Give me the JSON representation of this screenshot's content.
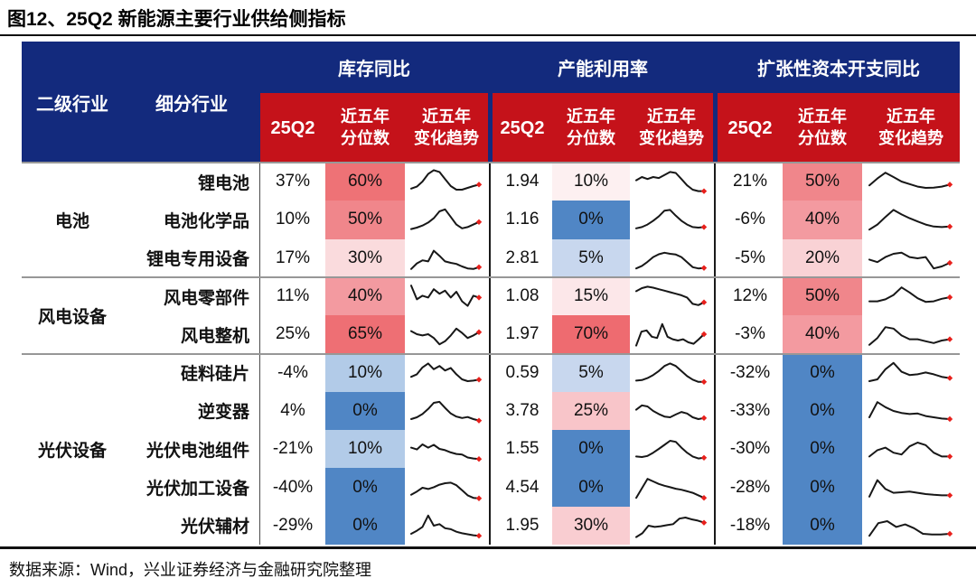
{
  "title": "图12、25Q2 新能源主要行业供给侧指标",
  "source_note": "数据来源：Wind，兴业证券经济与金融研究院整理",
  "header": {
    "industry": "二级行业",
    "segment": "细分行业",
    "q_label": "25Q2",
    "pct_label": "近五年\n分位数",
    "trend_label": "近五年\n变化趋势"
  },
  "colors": {
    "header_navy": "#132a7d",
    "header_red": "#c5121a",
    "spark_line": "#171717",
    "spark_dot": "#e8201c",
    "percentile_red_strong": "#ee6f74",
    "percentile_blue": "#5086c5"
  },
  "chart_data": {
    "type": "table",
    "title": "图12、25Q2 新能源主要行业供给侧指标",
    "column_groups": [
      "库存同比",
      "产能利用率",
      "扩张性资本开支同比"
    ],
    "sub_columns": [
      "25Q2",
      "近五年分位数",
      "近五年变化趋势"
    ],
    "industry_groups": [
      {
        "name": "电池",
        "rows": 3
      },
      {
        "name": "风电设备",
        "rows": 2
      },
      {
        "name": "光伏设备",
        "rows": 5
      }
    ],
    "rows": [
      {
        "industry": "电池",
        "segment": "锂电池",
        "inventory": {
          "value": "37%",
          "percentile": "60%",
          "color": "#ee7276",
          "trend": [
            0.22,
            0.3,
            0.5,
            0.8,
            0.95,
            0.88,
            0.6,
            0.32,
            0.18,
            0.18,
            0.25,
            0.32,
            0.38
          ]
        },
        "capacity": {
          "value": "1.94",
          "percentile": "10%",
          "color": "#fdf0f1",
          "trend": [
            0.55,
            0.68,
            0.6,
            0.68,
            0.64,
            0.76,
            0.88,
            0.84,
            0.6,
            0.35,
            0.18,
            0.12,
            0.12
          ]
        },
        "capex": {
          "value": "21%",
          "percentile": "50%",
          "color": "#f0868b",
          "trend": [
            0.35,
            0.62,
            0.85,
            0.68,
            0.5,
            0.4,
            0.3,
            0.25,
            0.26,
            0.3,
            0.38
          ]
        }
      },
      {
        "industry": "电池",
        "segment": "电池化学品",
        "inventory": {
          "value": "10%",
          "percentile": "50%",
          "color": "#f0868b",
          "trend": [
            0.12,
            0.18,
            0.26,
            0.38,
            0.55,
            0.82,
            0.9,
            0.6,
            0.3,
            0.15,
            0.2,
            0.3,
            0.4
          ]
        },
        "capacity": {
          "value": "1.16",
          "percentile": "0%",
          "color": "#5086c5",
          "trend": [
            0.15,
            0.2,
            0.3,
            0.45,
            0.62,
            0.85,
            0.88,
            0.65,
            0.45,
            0.3,
            0.2,
            0.18,
            0.2
          ]
        },
        "capex": {
          "value": "-6%",
          "percentile": "40%",
          "color": "#f39aa0",
          "trend": [
            0.1,
            0.3,
            0.6,
            0.88,
            0.7,
            0.55,
            0.42,
            0.3,
            0.22,
            0.2,
            0.22
          ]
        }
      },
      {
        "industry": "电池",
        "segment": "锂电专用设备",
        "inventory": {
          "value": "17%",
          "percentile": "30%",
          "color": "#fadbdd",
          "trend": [
            0.08,
            0.3,
            0.42,
            0.38,
            0.8,
            0.6,
            0.38,
            0.32,
            0.28,
            0.18,
            0.1,
            0.08,
            0.15
          ]
        },
        "capacity": {
          "value": "2.81",
          "percentile": "5%",
          "color": "#c8d7ee",
          "trend": [
            0.1,
            0.2,
            0.36,
            0.55,
            0.66,
            0.72,
            0.68,
            0.65,
            0.55,
            0.35,
            0.15,
            0.1,
            0.12
          ]
        },
        "capex": {
          "value": "-5%",
          "percentile": "20%",
          "color": "#f9d2d5",
          "trend": [
            0.45,
            0.35,
            0.55,
            0.68,
            0.72,
            0.55,
            0.5,
            0.55,
            0.1,
            0.18,
            0.32
          ]
        }
      },
      {
        "industry": "风电设备",
        "segment": "风电零部件",
        "inventory": {
          "value": "11%",
          "percentile": "40%",
          "color": "#f39aa0",
          "trend": [
            0.92,
            0.38,
            0.52,
            0.45,
            0.78,
            0.6,
            0.72,
            0.45,
            0.68,
            0.3,
            0.12,
            0.52,
            0.45
          ]
        },
        "capacity": {
          "value": "1.08",
          "percentile": "15%",
          "color": "#fce7e9",
          "trend": [
            0.7,
            0.82,
            0.88,
            0.84,
            0.78,
            0.72,
            0.66,
            0.6,
            0.54,
            0.45,
            0.2,
            0.15,
            0.26
          ]
        },
        "capex": {
          "value": "12%",
          "percentile": "50%",
          "color": "#f0868b",
          "trend": [
            0.3,
            0.3,
            0.38,
            0.55,
            0.85,
            0.65,
            0.42,
            0.28,
            0.3,
            0.4,
            0.46
          ]
        }
      },
      {
        "industry": "风电设备",
        "segment": "风电整机",
        "inventory": {
          "value": "25%",
          "percentile": "65%",
          "color": "#ee6f74",
          "trend": [
            0.62,
            0.5,
            0.45,
            0.5,
            0.35,
            0.1,
            0.22,
            0.45,
            0.72,
            0.55,
            0.35,
            0.45,
            0.58
          ]
        },
        "capacity": {
          "value": "1.97",
          "percentile": "70%",
          "color": "#ee6b70",
          "trend": [
            0.05,
            0.6,
            0.65,
            0.4,
            0.35,
            0.9,
            0.4,
            0.3,
            0.25,
            0.3,
            0.18,
            0.12,
            0.3,
            0.5
          ]
        },
        "capex": {
          "value": "-3%",
          "percentile": "40%",
          "color": "#f39aa0",
          "trend": [
            0.08,
            0.35,
            0.78,
            0.72,
            0.45,
            0.3,
            0.3,
            0.22,
            0.15,
            0.25,
            0.3
          ]
        }
      },
      {
        "industry": "光伏设备",
        "segment": "硅料硅片",
        "inventory": {
          "value": "-4%",
          "percentile": "10%",
          "color": "#b2cbe8",
          "trend": [
            0.35,
            0.45,
            0.72,
            0.88,
            0.65,
            0.78,
            0.6,
            0.7,
            0.45,
            0.25,
            0.18,
            0.2,
            0.24
          ]
        },
        "capacity": {
          "value": "0.59",
          "percentile": "5%",
          "color": "#c8d7ee",
          "trend": [
            0.2,
            0.22,
            0.3,
            0.42,
            0.58,
            0.78,
            0.88,
            0.78,
            0.58,
            0.38,
            0.24,
            0.15,
            0.15
          ]
        },
        "capex": {
          "value": "-32%",
          "percentile": "0%",
          "color": "#5086c5",
          "trend": [
            0.18,
            0.25,
            0.65,
            0.9,
            0.55,
            0.42,
            0.45,
            0.52,
            0.45,
            0.35,
            0.3
          ]
        }
      },
      {
        "industry": "光伏设备",
        "segment": "逆变器",
        "inventory": {
          "value": "4%",
          "percentile": "0%",
          "color": "#5086c5",
          "trend": [
            0.18,
            0.25,
            0.38,
            0.58,
            0.82,
            0.86,
            0.62,
            0.4,
            0.28,
            0.22,
            0.26,
            0.18,
            0.12
          ]
        },
        "capacity": {
          "value": "3.78",
          "percentile": "25%",
          "color": "#f8c5c9",
          "trend": [
            0.55,
            0.72,
            0.68,
            0.5,
            0.38,
            0.28,
            0.25,
            0.36,
            0.46,
            0.4,
            0.25,
            0.18,
            0.22
          ]
        },
        "capex": {
          "value": "-33%",
          "percentile": "0%",
          "color": "#5086c5",
          "trend": [
            0.25,
            0.85,
            0.65,
            0.5,
            0.42,
            0.38,
            0.4,
            0.3,
            0.25,
            0.2,
            0.18
          ]
        }
      },
      {
        "industry": "光伏设备",
        "segment": "光伏电池组件",
        "inventory": {
          "value": "-21%",
          "percentile": "10%",
          "color": "#b2cbe8",
          "trend": [
            0.55,
            0.48,
            0.68,
            0.55,
            0.66,
            0.5,
            0.45,
            0.36,
            0.3,
            0.28,
            0.16,
            0.12,
            0.1
          ]
        },
        "capacity": {
          "value": "1.55",
          "percentile": "0%",
          "color": "#5086c5",
          "trend": [
            0.2,
            0.18,
            0.22,
            0.35,
            0.5,
            0.66,
            0.82,
            0.78,
            0.55,
            0.35,
            0.2,
            0.12,
            0.15
          ]
        },
        "capex": {
          "value": "-30%",
          "percentile": "0%",
          "color": "#5086c5",
          "trend": [
            0.2,
            0.45,
            0.55,
            0.35,
            0.28,
            0.6,
            0.75,
            0.65,
            0.35,
            0.2,
            0.2
          ]
        }
      },
      {
        "industry": "光伏设备",
        "segment": "光伏加工设备",
        "inventory": {
          "value": "-40%",
          "percentile": "0%",
          "color": "#5086c5",
          "trend": [
            0.22,
            0.35,
            0.5,
            0.45,
            0.52,
            0.62,
            0.68,
            0.7,
            0.6,
            0.4,
            0.2,
            0.1,
            0.08
          ]
        },
        "capacity": {
          "value": "4.54",
          "percentile": "0%",
          "color": "#5086c5",
          "trend": [
            0.1,
            0.48,
            0.85,
            0.75,
            0.65,
            0.58,
            0.52,
            0.46,
            0.42,
            0.36,
            0.3,
            0.2,
            0.1
          ]
        },
        "capex": {
          "value": "-28%",
          "percentile": "0%",
          "color": "#5086c5",
          "trend": [
            0.15,
            0.8,
            0.45,
            0.3,
            0.32,
            0.35,
            0.3,
            0.25,
            0.22,
            0.2,
            0.2
          ]
        }
      },
      {
        "industry": "光伏设备",
        "segment": "光伏辅材",
        "inventory": {
          "value": "-29%",
          "percentile": "0%",
          "color": "#5086c5",
          "trend": [
            0.18,
            0.3,
            0.45,
            0.9,
            0.5,
            0.56,
            0.4,
            0.36,
            0.26,
            0.2,
            0.16,
            0.12,
            0.1
          ]
        },
        "capacity": {
          "value": "1.95",
          "percentile": "30%",
          "color": "#f9cdd1",
          "trend": [
            0.05,
            0.2,
            0.5,
            0.45,
            0.48,
            0.52,
            0.56,
            0.78,
            0.82,
            0.75,
            0.7,
            0.62
          ]
        },
        "capex": {
          "value": "-18%",
          "percentile": "0%",
          "color": "#5086c5",
          "trend": [
            0.1,
            0.6,
            0.68,
            0.45,
            0.55,
            0.4,
            0.18,
            0.15,
            0.15,
            0.18
          ]
        }
      }
    ]
  }
}
